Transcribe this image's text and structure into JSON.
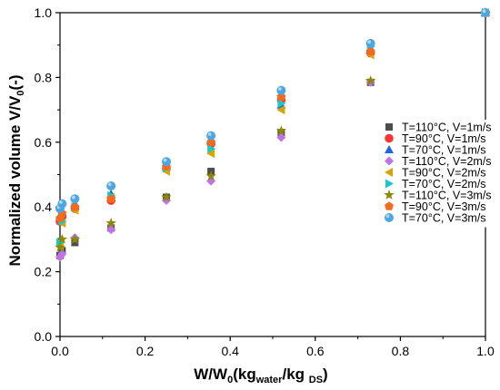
{
  "chart_data": {
    "type": "scatter",
    "xlabel": {
      "main": "W/W",
      "sub0": "0",
      "open": "(kg",
      "sub1": "water",
      "mid": "/kg ",
      "sub2": "DS",
      "close": ")"
    },
    "ylabel": {
      "main": "Normalized volume V/V",
      "sub0": "0",
      "rest": "(-)"
    },
    "xlim": [
      0.0,
      1.0
    ],
    "ylim": [
      0.0,
      1.0
    ],
    "x_ticks": [
      "0.0",
      "0.2",
      "0.4",
      "0.6",
      "0.8",
      "1.0"
    ],
    "y_ticks": [
      "0.0",
      "0.2",
      "0.4",
      "0.6",
      "0.8",
      "1.0"
    ],
    "legend_position": "right",
    "series": [
      {
        "name": "T=110°C, V=1m/s",
        "marker": "square",
        "color": "#4d4d4d",
        "points": [
          [
            0.0,
            0.25
          ],
          [
            0.005,
            0.265
          ],
          [
            0.035,
            0.29
          ],
          [
            0.12,
            0.335
          ],
          [
            0.25,
            0.43
          ],
          [
            0.355,
            0.51
          ],
          [
            0.52,
            0.63
          ],
          [
            0.73,
            0.785
          ],
          [
            1.0,
            1.0
          ]
        ]
      },
      {
        "name": "T=90°C, V=1m/s",
        "marker": "circle",
        "color": "#ff3333",
        "points": [
          [
            0.0,
            0.355
          ],
          [
            0.005,
            0.37
          ],
          [
            0.035,
            0.395
          ],
          [
            0.12,
            0.42
          ],
          [
            0.25,
            0.52
          ],
          [
            0.355,
            0.595
          ],
          [
            0.52,
            0.73
          ],
          [
            0.73,
            0.875
          ],
          [
            1.0,
            1.0
          ]
        ]
      },
      {
        "name": "T=70°C, V=1m/s",
        "marker": "triangle-up",
        "color": "#1a66e6",
        "points": [
          [
            0.0,
            0.37
          ],
          [
            0.005,
            0.385
          ],
          [
            0.035,
            0.41
          ],
          [
            0.12,
            0.44
          ],
          [
            0.25,
            0.525
          ],
          [
            0.355,
            0.605
          ],
          [
            0.52,
            0.715
          ],
          [
            0.73,
            0.89
          ],
          [
            1.0,
            1.0
          ]
        ]
      },
      {
        "name": "T=110°C, V=2m/s",
        "marker": "diamond",
        "color": "#c173e6",
        "points": [
          [
            0.0,
            0.245
          ],
          [
            0.005,
            0.255
          ],
          [
            0.035,
            0.305
          ],
          [
            0.12,
            0.33
          ],
          [
            0.25,
            0.42
          ],
          [
            0.355,
            0.48
          ],
          [
            0.52,
            0.615
          ],
          [
            0.73,
            0.785
          ],
          [
            1.0,
            1.0
          ]
        ]
      },
      {
        "name": "T=90°C, V=2m/s",
        "marker": "triangle-left",
        "color": "#d9a400",
        "points": [
          [
            0.0,
            0.28
          ],
          [
            0.005,
            0.35
          ],
          [
            0.035,
            0.39
          ],
          [
            0.12,
            0.43
          ],
          [
            0.25,
            0.51
          ],
          [
            0.355,
            0.565
          ],
          [
            0.52,
            0.7
          ],
          [
            0.73,
            0.87
          ],
          [
            1.0,
            1.0
          ]
        ]
      },
      {
        "name": "T=70°C, V=2m/s",
        "marker": "triangle-right",
        "color": "#1ec8c8",
        "points": [
          [
            0.0,
            0.29
          ],
          [
            0.005,
            0.355
          ],
          [
            0.035,
            0.4
          ],
          [
            0.12,
            0.435
          ],
          [
            0.25,
            0.52
          ],
          [
            0.355,
            0.58
          ],
          [
            0.52,
            0.72
          ],
          [
            0.73,
            0.895
          ],
          [
            1.0,
            1.0
          ]
        ]
      },
      {
        "name": "T=110°C, V=3m/s",
        "marker": "star",
        "color": "#8a8a00",
        "points": [
          [
            0.0,
            0.275
          ],
          [
            0.005,
            0.3
          ],
          [
            0.035,
            0.3
          ],
          [
            0.12,
            0.35
          ],
          [
            0.25,
            0.43
          ],
          [
            0.355,
            0.495
          ],
          [
            0.52,
            0.635
          ],
          [
            0.73,
            0.79
          ],
          [
            1.0,
            1.0
          ]
        ]
      },
      {
        "name": "T=90°C, V=3m/s",
        "marker": "pentagon",
        "color": "#f26b1d",
        "points": [
          [
            0.0,
            0.365
          ],
          [
            0.005,
            0.38
          ],
          [
            0.035,
            0.4
          ],
          [
            0.12,
            0.425
          ],
          [
            0.25,
            0.525
          ],
          [
            0.355,
            0.6
          ],
          [
            0.52,
            0.74
          ],
          [
            0.73,
            0.88
          ],
          [
            1.0,
            1.0
          ]
        ]
      },
      {
        "name": "T=70°C, V=3m/s",
        "marker": "ball",
        "color": "#4da6e0",
        "points": [
          [
            0.0,
            0.395
          ],
          [
            0.005,
            0.41
          ],
          [
            0.035,
            0.425
          ],
          [
            0.12,
            0.465
          ],
          [
            0.25,
            0.54
          ],
          [
            0.355,
            0.62
          ],
          [
            0.52,
            0.76
          ],
          [
            0.73,
            0.905
          ],
          [
            1.0,
            1.0
          ]
        ]
      }
    ]
  }
}
